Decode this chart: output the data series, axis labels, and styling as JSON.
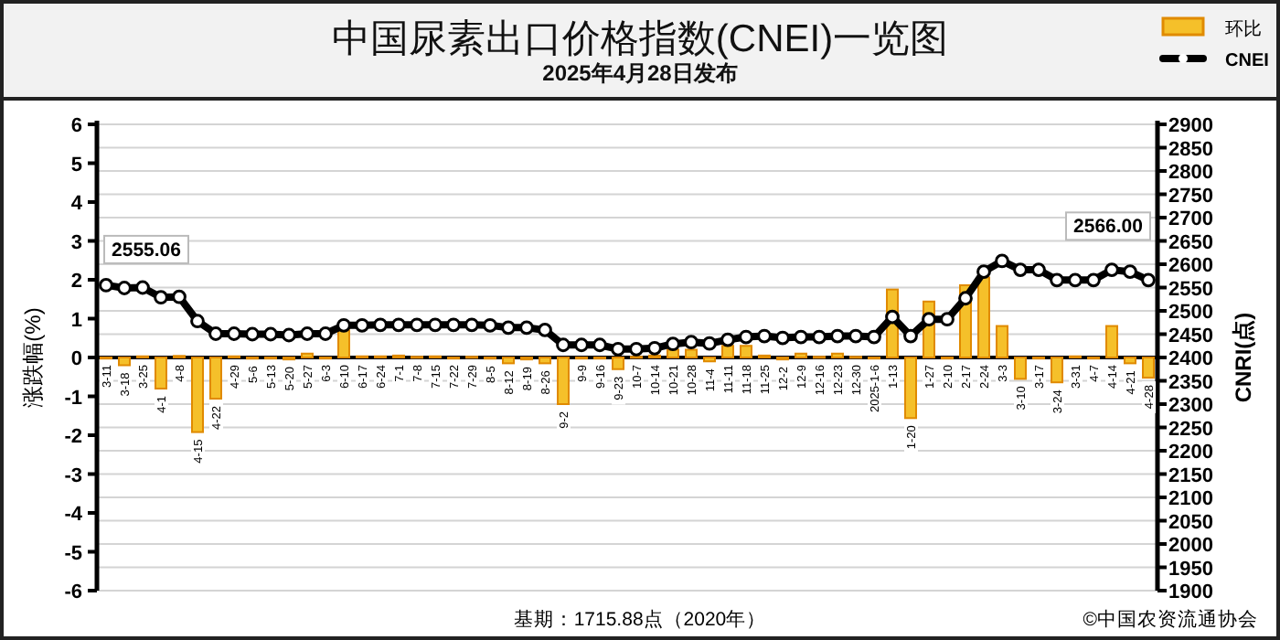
{
  "chart_data": {
    "type": "bar",
    "title": "中国尿素出口价格指数(CNEI)一览图",
    "subtitle": "2025年4月28日发布",
    "ylabel": "涨跌幅(%)",
    "y2label": "CNRI(点)",
    "categories": [
      "3-11",
      "3-18",
      "3-25",
      "4-1",
      "4-8",
      "4-15",
      "4-22",
      "4-29",
      "5-6",
      "5-13",
      "5-20",
      "5-27",
      "6-3",
      "6-10",
      "6-17",
      "6-24",
      "7-1",
      "7-8",
      "7-15",
      "7-22",
      "7-29",
      "8-5",
      "8-12",
      "8-19",
      "8-26",
      "9-2",
      "9-9",
      "9-16",
      "9-23",
      "10-7",
      "10-14",
      "10-21",
      "10-28",
      "11-4",
      "11-11",
      "11-18",
      "11-25",
      "12-2",
      "12-9",
      "12-16",
      "12-23",
      "12-30",
      "2025-1-6",
      "1-13",
      "1-20",
      "1-27",
      "2-10",
      "2-17",
      "2-24",
      "3-3",
      "3-10",
      "3-17",
      "3-24",
      "3-31",
      "4-7",
      "4-14",
      "4-21",
      "4-28"
    ],
    "series": [
      {
        "name": "环比",
        "color": "#f5c02a",
        "values": [
          0,
          -0.2,
          0.03,
          -0.8,
          0.04,
          -1.92,
          -1.06,
          0.03,
          -0.03,
          0,
          -0.05,
          0.1,
          0,
          0.7,
          0.03,
          0.03,
          0.05,
          0.02,
          0.03,
          0,
          0.02,
          -0.03,
          -0.15,
          -0.05,
          -0.15,
          -1.2,
          0,
          0,
          -0.3,
          0.02,
          0.05,
          0.2,
          0.2,
          -0.1,
          0.3,
          0.3,
          0.05,
          -0.05,
          0.1,
          0.02,
          0.1,
          0.02,
          0,
          1.75,
          -1.56,
          1.44,
          0,
          1.86,
          2.06,
          0.81,
          -0.55,
          0,
          -0.64,
          0.03,
          0,
          0.81,
          -0.15,
          -0.52
        ]
      },
      {
        "name": "CNEI",
        "type": "line",
        "axis": "y2",
        "color": "#000000",
        "values": [
          2555.06,
          2549,
          2550,
          2529,
          2530,
          2478,
          2451,
          2451,
          2450,
          2450,
          2448,
          2451,
          2451,
          2469,
          2469,
          2470,
          2470,
          2470,
          2470,
          2470,
          2470,
          2469,
          2464,
          2464,
          2459,
          2427,
          2427,
          2427,
          2418,
          2418,
          2420,
          2429,
          2433,
          2430,
          2438,
          2444,
          2446,
          2442,
          2444,
          2444,
          2446,
          2446,
          2444,
          2487,
          2446,
          2482,
          2482,
          2527,
          2584,
          2607,
          2588,
          2588,
          2566,
          2566,
          2566,
          2588,
          2584,
          2566.0
        ],
        "value_labels": [
          "2555.06",
          null,
          null,
          null,
          null,
          null,
          null,
          null,
          null,
          null,
          null,
          null,
          null,
          null,
          null,
          null,
          null,
          null,
          null,
          null,
          null,
          null,
          null,
          null,
          null,
          null,
          null,
          null,
          null,
          null,
          null,
          null,
          null,
          null,
          null,
          null,
          null,
          null,
          null,
          null,
          null,
          null,
          null,
          null,
          null,
          null,
          null,
          null,
          null,
          null,
          null,
          null,
          null,
          null,
          null,
          null,
          null,
          "2566.00"
        ]
      }
    ],
    "ylim": [
      -6,
      6
    ],
    "yticks": [
      -6,
      -5,
      -4,
      -3,
      -2,
      -1,
      0,
      1,
      2,
      3,
      4,
      5,
      6
    ],
    "y2lim": [
      1900,
      2900
    ],
    "y2ticks": [
      1900,
      1950,
      2000,
      2050,
      2100,
      2150,
      2200,
      2250,
      2300,
      2350,
      2400,
      2450,
      2500,
      2550,
      2600,
      2650,
      2700,
      2750,
      2800,
      2850,
      2900
    ],
    "grid": "y",
    "legend": "top right",
    "marker": "circle",
    "annotations": [
      "基期：1715.88点（2020年）",
      "©中国农资流通协会"
    ]
  }
}
